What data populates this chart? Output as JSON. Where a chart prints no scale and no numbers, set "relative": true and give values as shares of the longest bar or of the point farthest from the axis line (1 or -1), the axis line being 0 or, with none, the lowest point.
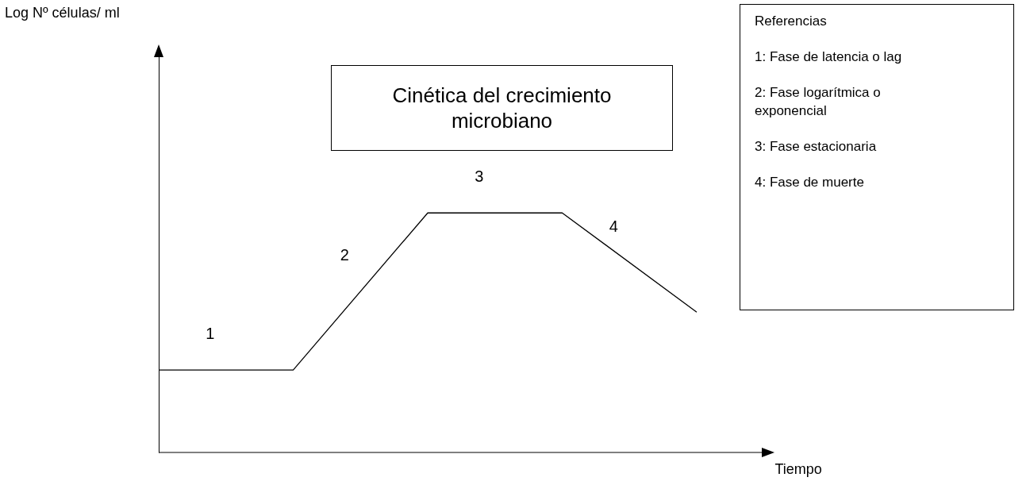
{
  "chart_data": {
    "type": "line",
    "relative": true,
    "title": "Cinética del crecimiento microbiano",
    "xlabel": "Tiempo",
    "categories": [
      null,
      null,
      null,
      null,
      null
    ],
    "series": [
      {
        "color": "#000000",
        "values": [
          0.344,
          0.344,
          1,
          1,
          0.586
        ]
      }
    ],
    "marker": "none",
    "line_style": "solid",
    "grid": false,
    "annotations": [
      "1",
      "2",
      "3",
      "4",
      "Referencias",
      "1: Fase de latencia o lag",
      "2: Fase logarítmica o exponencial",
      "3: Fase estacionaria",
      "4: Fase de muerte",
      "Log Nº células/ ml"
    ]
  }
}
